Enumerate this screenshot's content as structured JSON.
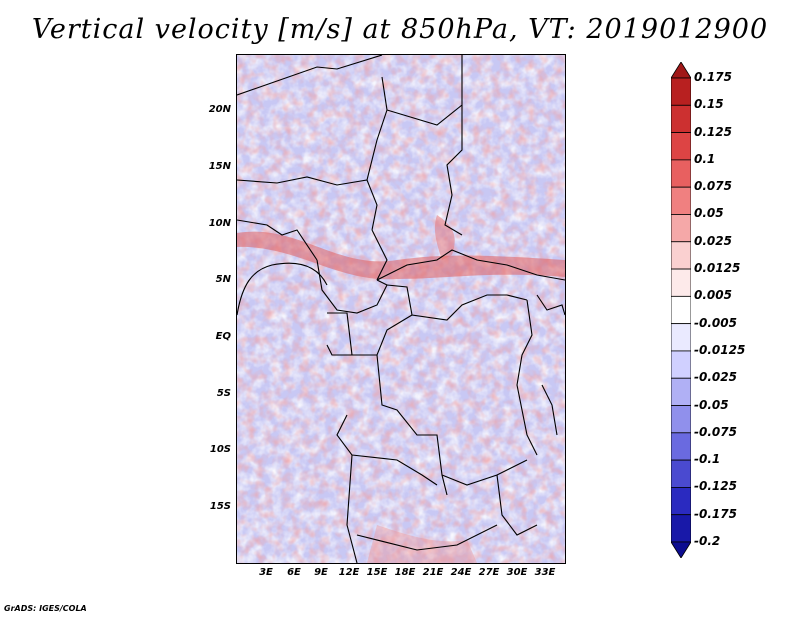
{
  "title": "Vertical velocity [m/s] at 850hPa, VT: 2019012900",
  "footer": "GrADS: IGES/COLA",
  "y_axis_labels": [
    "20N",
    "15N",
    "10N",
    "5N",
    "EQ",
    "5S",
    "10S",
    "15S"
  ],
  "x_axis_labels": [
    "3E",
    "6E",
    "9E",
    "12E",
    "15E",
    "18E",
    "21E",
    "24E",
    "27E",
    "30E",
    "33E"
  ],
  "colorbar": {
    "labels": [
      "0.175",
      "0.15",
      "0.125",
      "0.1",
      "0.075",
      "0.05",
      "0.025",
      "0.0125",
      "0.005",
      "-0.005",
      "-0.0125",
      "-0.025",
      "-0.05",
      "-0.075",
      "-0.1",
      "-0.125",
      "-0.175",
      "-0.2"
    ],
    "colors": [
      "#a01818",
      "#b82020",
      "#cc3030",
      "#dd4444",
      "#e86060",
      "#f08080",
      "#f5a8a8",
      "#fad0d0",
      "#fdeaea",
      "#ffffff",
      "#eaeaff",
      "#d0d0ff",
      "#b0b0f5",
      "#9090ec",
      "#6a6ae0",
      "#4a4ad0",
      "#2a2ac0",
      "#1818a8",
      "#0c0c90"
    ]
  }
}
